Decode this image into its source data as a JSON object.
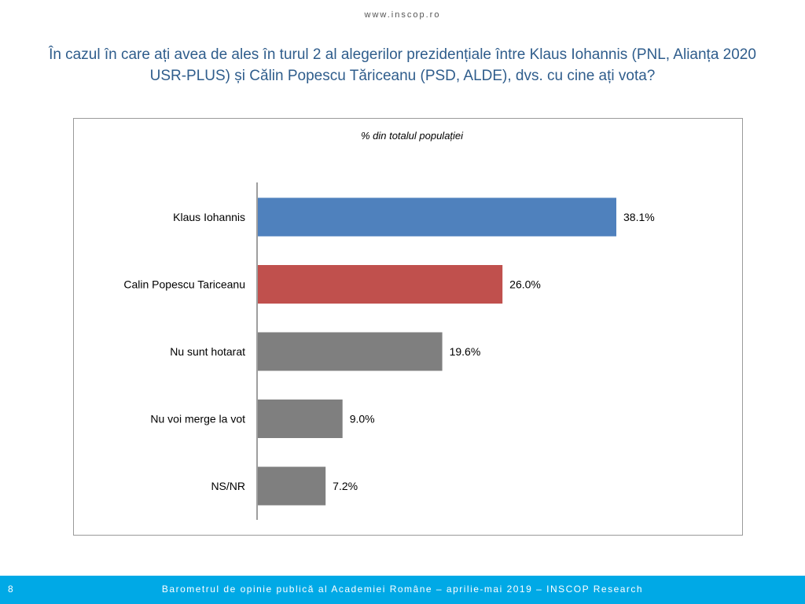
{
  "header": {
    "site_url": "www.inscop.ro",
    "question": "În cazul în care ați avea de ales în turul 2 al alegerilor prezidențiale între Klaus Iohannis (PNL, Alianța 2020 USR-PLUS) și Călin Popescu Tăriceanu (PSD, ALDE), dvs. cu cine ați vota?"
  },
  "chart_data": {
    "type": "bar",
    "orientation": "horizontal",
    "subtitle": "% din totalul populației",
    "categories": [
      "Klaus Iohannis",
      "Calin Popescu Tariceanu",
      "Nu sunt hotarat",
      "Nu voi merge la vot",
      "NS/NR"
    ],
    "values": [
      38.1,
      26.0,
      19.6,
      9.0,
      7.2
    ],
    "value_labels": [
      "38.1%",
      "26.0%",
      "19.6%",
      "9.0%",
      "7.2%"
    ],
    "colors": [
      "#4f81bd",
      "#c0504d",
      "#7f7f7f",
      "#7f7f7f",
      "#7f7f7f"
    ],
    "xlim": [
      0,
      40
    ],
    "grid": false,
    "legend": "none"
  },
  "footer": {
    "page_number": "8",
    "text": "Barometrul de opinie publică al Academiei Române – aprilie-mai 2019 – INSCOP Research"
  }
}
